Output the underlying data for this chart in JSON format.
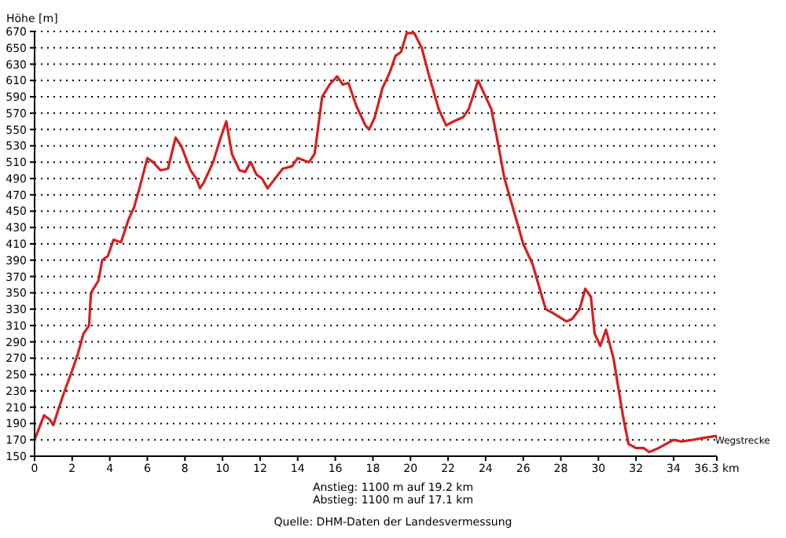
{
  "chart_data": {
    "type": "line",
    "ylabel": "Höhe [m]",
    "xlabel": "Wegstrecke",
    "annotations": [
      "Anstieg: 1100 m auf 19.2 km",
      "Abstieg: 1100 m auf 17.1 km",
      "Quelle: DHM-Daten der Landesvermessung"
    ],
    "x": [
      0,
      0.5,
      0.8,
      1.0,
      1.3,
      1.6,
      2.0,
      2.3,
      2.6,
      2.9,
      3.0,
      3.4,
      3.6,
      3.9,
      4.2,
      4.6,
      5.0,
      5.3,
      5.6,
      6.0,
      6.3,
      6.7,
      7.1,
      7.5,
      7.8,
      8.3,
      8.6,
      8.8,
      9.0,
      9.5,
      9.9,
      10.2,
      10.5,
      10.9,
      11.2,
      11.5,
      11.8,
      12.1,
      12.4,
      12.8,
      13.2,
      13.7,
      14.0,
      14.6,
      14.9,
      15.3,
      15.7,
      16.1,
      16.4,
      16.7,
      17.1,
      17.6,
      17.8,
      18.1,
      18.5,
      18.9,
      19.2,
      19.5,
      19.8,
      20.2,
      20.6,
      21.0,
      21.5,
      21.9,
      22.3,
      22.8,
      23.1,
      23.6,
      24.0,
      24.3,
      24.6,
      25.0,
      25.5,
      26.0,
      26.5,
      27.0,
      27.2,
      27.6,
      28.3,
      28.6,
      29.0,
      29.3,
      29.6,
      29.8,
      30.1,
      30.4,
      30.8,
      31.3,
      31.6,
      32.0,
      32.4,
      32.7,
      33.2,
      33.6,
      34.0,
      34.4,
      35.0,
      35.5,
      36.3
    ],
    "series": [
      {
        "color": "#d42020",
        "values": [
          170,
          200,
          195,
          188,
          210,
          230,
          255,
          275,
          300,
          310,
          350,
          365,
          390,
          395,
          415,
          412,
          440,
          455,
          480,
          515,
          510,
          500,
          502,
          540,
          530,
          500,
          490,
          478,
          485,
          510,
          540,
          560,
          520,
          500,
          498,
          510,
          495,
          490,
          478,
          490,
          502,
          505,
          515,
          510,
          520,
          590,
          605,
          615,
          605,
          607,
          580,
          555,
          550,
          565,
          600,
          620,
          640,
          645,
          668,
          668,
          650,
          615,
          575,
          555,
          560,
          565,
          575,
          610,
          590,
          575,
          540,
          490,
          450,
          410,
          385,
          345,
          330,
          325,
          315,
          318,
          330,
          355,
          345,
          300,
          285,
          305,
          270,
          200,
          165,
          160,
          160,
          155,
          160,
          165,
          170,
          168,
          170,
          172,
          175
        ]
      }
    ],
    "xlim": [
      0,
      36.3
    ],
    "xticks": [
      0,
      2,
      4,
      6,
      8,
      10,
      12,
      14,
      16,
      18,
      20,
      22,
      24,
      26,
      28,
      30,
      32,
      34,
      {
        "value": 36.3,
        "label": "36.3 km"
      }
    ],
    "ylim": [
      150,
      670
    ],
    "yticks": [
      150,
      170,
      190,
      210,
      230,
      250,
      270,
      290,
      310,
      330,
      350,
      370,
      390,
      410,
      430,
      450,
      470,
      490,
      510,
      530,
      550,
      570,
      590,
      610,
      630,
      650,
      670
    ],
    "grid": "y",
    "marker": "none",
    "line_style": "solid"
  }
}
